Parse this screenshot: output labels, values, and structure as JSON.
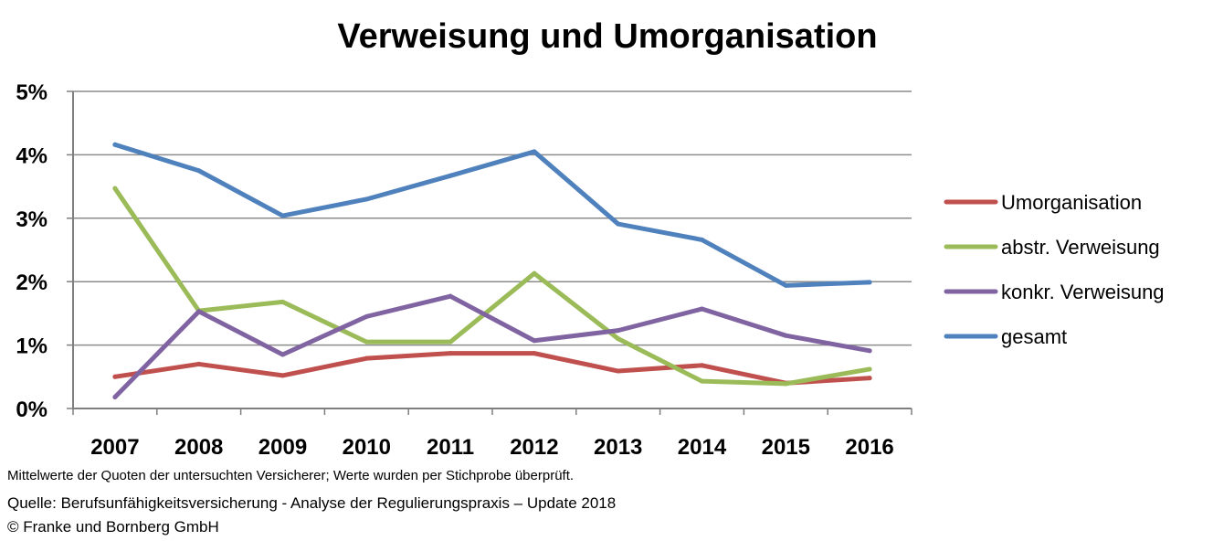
{
  "chart_data": {
    "type": "line",
    "title": "Verweisung und Umorganisation",
    "x": [
      "2007",
      "2008",
      "2009",
      "2010",
      "2011",
      "2012",
      "2013",
      "2014",
      "2015",
      "2016"
    ],
    "ylim": [
      0,
      5
    ],
    "yticks": [
      "0%",
      "1%",
      "2%",
      "3%",
      "4%",
      "5%"
    ],
    "grid": true,
    "legend_position": "right",
    "series": [
      {
        "name": "Umorganisation",
        "color": "#c0504d",
        "values": [
          0.5,
          0.7,
          0.52,
          0.79,
          0.87,
          0.87,
          0.59,
          0.68,
          0.4,
          0.48
        ]
      },
      {
        "name": "abstr. Verweisung",
        "color": "#9bbb59",
        "values": [
          3.47,
          1.54,
          1.68,
          1.05,
          1.05,
          2.13,
          1.1,
          0.43,
          0.39,
          0.62
        ]
      },
      {
        "name": "konkr. Verweisung",
        "color": "#8064a2",
        "values": [
          0.18,
          1.53,
          0.85,
          1.45,
          1.77,
          1.07,
          1.23,
          1.57,
          1.15,
          0.91
        ]
      },
      {
        "name": "gesamt",
        "color": "#4f81bd",
        "values": [
          4.16,
          3.75,
          3.04,
          3.3,
          3.67,
          4.05,
          2.91,
          2.66,
          1.94,
          1.99
        ]
      }
    ]
  },
  "footnote": "Mittelwerte der Quoten der untersuchten Versicherer; Werte wurden per Stichprobe überprüft.",
  "source": "Quelle: Berufsunfähigkeitsversicherung - Analyse der Regulierungspraxis – Update 2018",
  "copyright": "© Franke und Bornberg GmbH"
}
